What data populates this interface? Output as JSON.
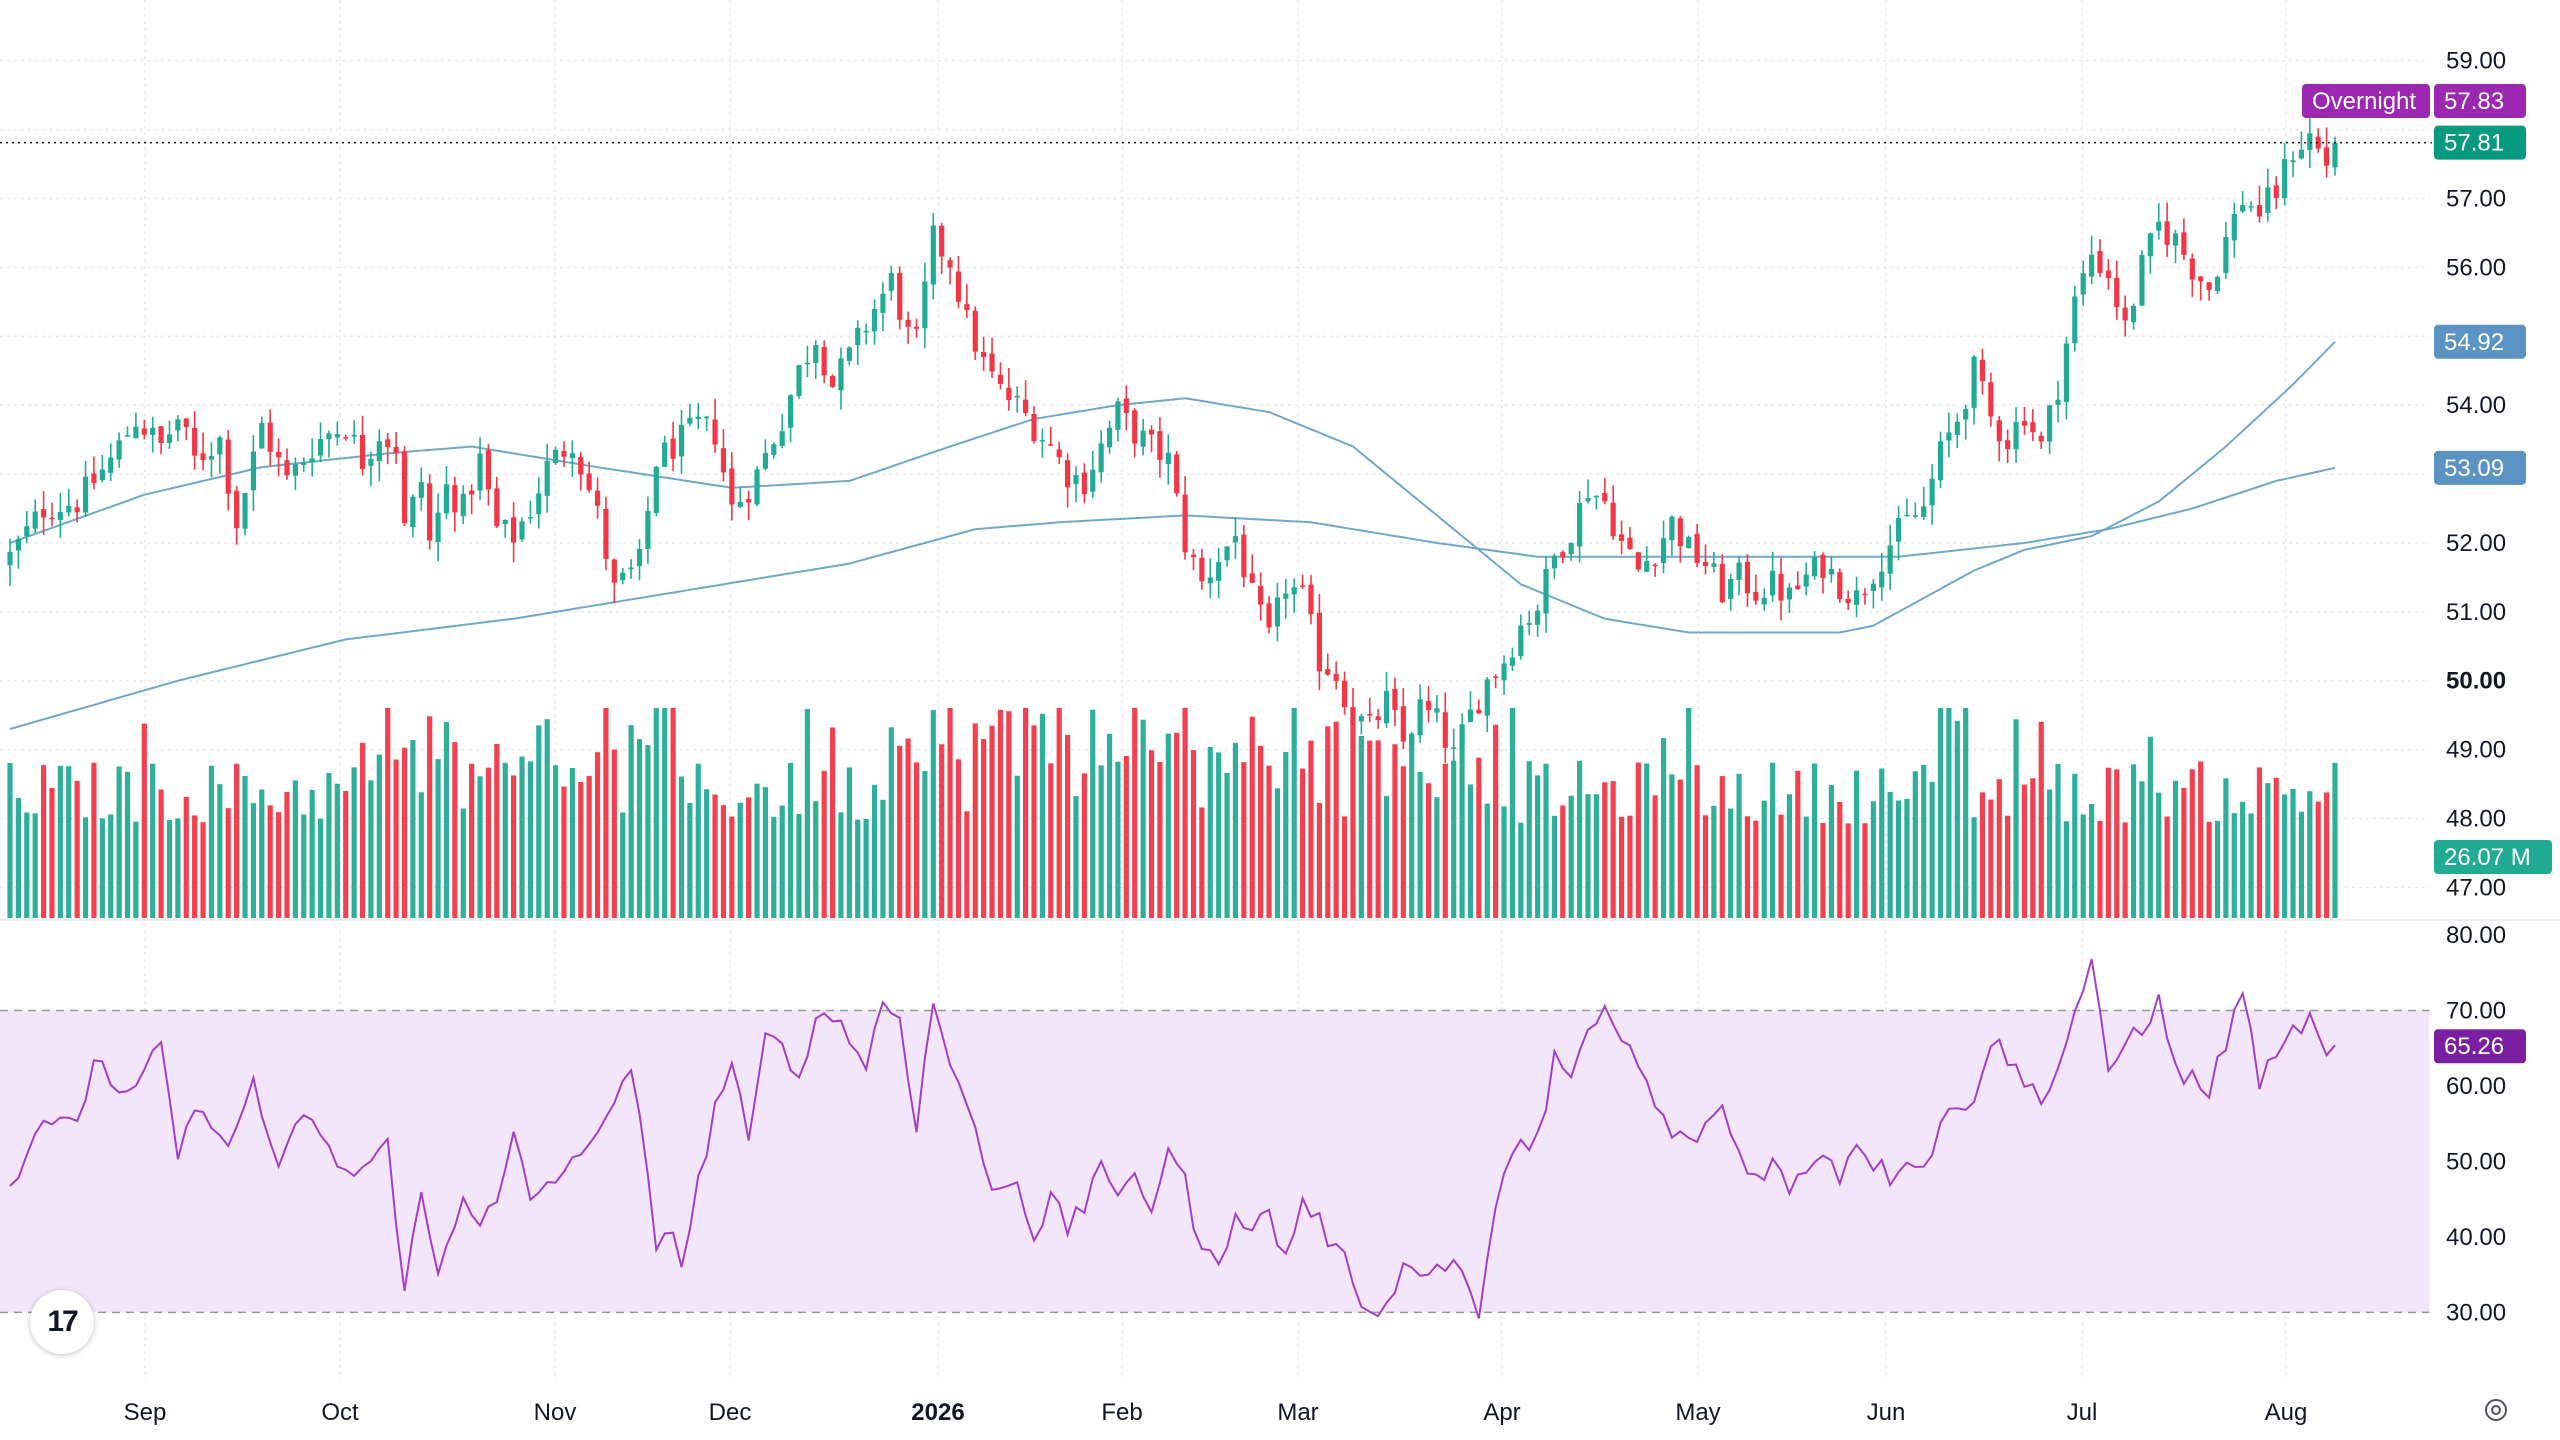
{
  "overnight_label": "Overnight",
  "overnight_price": "57.83",
  "last_price": "57.81",
  "ma_fast_value": "54.92",
  "ma_slow_value": "53.09",
  "volume_value": "26.07 M",
  "rsi_value": "65.26",
  "logo_text": "17",
  "colors": {
    "up": "#22ab94",
    "down": "#f23645",
    "ma_line": "#6fa8c9",
    "rsi_line": "#a33ec7",
    "rsi_band": "#f3e6fb",
    "overnight_tag": "#9c27b0",
    "last_tag": "#089981",
    "ma_tag": "#5b93c2",
    "volume_tag": "#22ab94",
    "rsi_tag": "#7b1fa2"
  },
  "price_axis": [
    "59.00",
    "57.00",
    "56.00",
    "54.00",
    "53.00",
    "52.00",
    "51.00",
    "50.00",
    "49.00",
    "48.00",
    "47.00"
  ],
  "rsi_axis": [
    "80.00",
    "70.00",
    "60.00",
    "50.00",
    "40.00",
    "30.00"
  ],
  "x_axis": [
    "Sep",
    "Oct",
    "Nov",
    "Dec",
    "2026",
    "Feb",
    "Mar",
    "Apr",
    "May",
    "Jun",
    "Jul",
    "Aug"
  ],
  "chart_data": {
    "type": "candlestick",
    "price_axis_range": [
      46.6,
      59.3
    ],
    "rsi_range": [
      27,
      80
    ],
    "rsi_bands": [
      30,
      70
    ],
    "grid": true,
    "price_anchors": [
      [
        0,
        51.8
      ],
      [
        4,
        52.5
      ],
      [
        8,
        52.6
      ],
      [
        12,
        53.2
      ],
      [
        15,
        53.8
      ],
      [
        18,
        53.4
      ],
      [
        20,
        53.8
      ],
      [
        22,
        53.2
      ],
      [
        25,
        53.5
      ],
      [
        27,
        52.3
      ],
      [
        30,
        53.7
      ],
      [
        33,
        52.9
      ],
      [
        36,
        53.4
      ],
      [
        38,
        53.6
      ],
      [
        40,
        53.7
      ],
      [
        42,
        53.2
      ],
      [
        44,
        53.6
      ],
      [
        46,
        53.4
      ],
      [
        47,
        52.2
      ],
      [
        49,
        52.9
      ],
      [
        50,
        52.0
      ],
      [
        52,
        52.8
      ],
      [
        54,
        52.5
      ],
      [
        56,
        53.2
      ],
      [
        58,
        52.2
      ],
      [
        60,
        52.1
      ],
      [
        62,
        52.5
      ],
      [
        64,
        53.1
      ],
      [
        67,
        53.5
      ],
      [
        70,
        52.4
      ],
      [
        72,
        51.3
      ],
      [
        75,
        51.7
      ],
      [
        77,
        53.2
      ],
      [
        80,
        53.5
      ],
      [
        82,
        53.7
      ],
      [
        84,
        53.6
      ],
      [
        86,
        52.5
      ],
      [
        88,
        52.8
      ],
      [
        89,
        53.0
      ],
      [
        92,
        53.8
      ],
      [
        94,
        54.5
      ],
      [
        96,
        55.0
      ],
      [
        98,
        54.3
      ],
      [
        100,
        54.7
      ],
      [
        103,
        55.4
      ],
      [
        105,
        55.8
      ],
      [
        107,
        55.0
      ],
      [
        108,
        54.9
      ],
      [
        110,
        56.4
      ],
      [
        112,
        56.1
      ],
      [
        114,
        55.2
      ],
      [
        116,
        54.6
      ],
      [
        118,
        54.2
      ],
      [
        120,
        54.0
      ],
      [
        122,
        53.7
      ],
      [
        124,
        53.4
      ],
      [
        126,
        53.0
      ],
      [
        128,
        52.9
      ],
      [
        130,
        53.4
      ],
      [
        132,
        53.9
      ],
      [
        134,
        53.6
      ],
      [
        136,
        53.4
      ],
      [
        138,
        53.2
      ],
      [
        140,
        52.0
      ],
      [
        142,
        51.4
      ],
      [
        144,
        51.8
      ],
      [
        146,
        52.1
      ],
      [
        148,
        51.2
      ],
      [
        150,
        50.6
      ],
      [
        152,
        51.4
      ],
      [
        154,
        51.2
      ],
      [
        156,
        50.3
      ],
      [
        158,
        50.1
      ],
      [
        160,
        49.5
      ],
      [
        162,
        49.3
      ],
      [
        164,
        49.7
      ],
      [
        166,
        49.1
      ],
      [
        168,
        49.6
      ],
      [
        170,
        49.4
      ],
      [
        172,
        48.9
      ],
      [
        174,
        49.5
      ],
      [
        176,
        50.0
      ],
      [
        178,
        50.3
      ],
      [
        180,
        50.8
      ],
      [
        182,
        51.1
      ],
      [
        184,
        51.8
      ],
      [
        186,
        52.2
      ],
      [
        188,
        52.8
      ],
      [
        190,
        52.6
      ],
      [
        192,
        52.0
      ],
      [
        194,
        51.6
      ],
      [
        196,
        51.9
      ],
      [
        198,
        52.3
      ],
      [
        200,
        51.9
      ],
      [
        202,
        51.7
      ],
      [
        204,
        51.3
      ],
      [
        206,
        51.5
      ],
      [
        208,
        51.3
      ],
      [
        210,
        51.4
      ],
      [
        212,
        51.2
      ],
      [
        214,
        51.5
      ],
      [
        216,
        51.7
      ],
      [
        218,
        51.4
      ],
      [
        220,
        51.2
      ],
      [
        222,
        51.6
      ],
      [
        224,
        52.0
      ],
      [
        226,
        52.3
      ],
      [
        228,
        52.5
      ],
      [
        230,
        53.3
      ],
      [
        232,
        53.8
      ],
      [
        234,
        54.5
      ],
      [
        236,
        53.8
      ],
      [
        238,
        53.5
      ],
      [
        240,
        53.9
      ],
      [
        242,
        53.4
      ],
      [
        244,
        54.3
      ],
      [
        246,
        55.5
      ],
      [
        248,
        56.2
      ],
      [
        250,
        55.9
      ],
      [
        252,
        55.1
      ],
      [
        254,
        56.0
      ],
      [
        256,
        56.6
      ],
      [
        258,
        56.4
      ],
      [
        260,
        56.0
      ],
      [
        262,
        55.7
      ],
      [
        264,
        56.4
      ],
      [
        266,
        57.0
      ],
      [
        268,
        56.8
      ],
      [
        270,
        57.1
      ],
      [
        272,
        57.7
      ],
      [
        274,
        57.9
      ],
      [
        276,
        57.5
      ],
      [
        277,
        57.81
      ]
    ],
    "sma_fast_anchors": [
      [
        0,
        52.0
      ],
      [
        16,
        52.7
      ],
      [
        30,
        53.1
      ],
      [
        45,
        53.3
      ],
      [
        55,
        53.4
      ],
      [
        70,
        53.1
      ],
      [
        86,
        52.8
      ],
      [
        100,
        52.9
      ],
      [
        112,
        53.4
      ],
      [
        122,
        53.8
      ],
      [
        132,
        54.0
      ],
      [
        140,
        54.1
      ],
      [
        150,
        53.9
      ],
      [
        160,
        53.4
      ],
      [
        170,
        52.4
      ],
      [
        180,
        51.4
      ],
      [
        190,
        50.9
      ],
      [
        200,
        50.7
      ],
      [
        210,
        50.7
      ],
      [
        218,
        50.7
      ],
      [
        222,
        50.8
      ],
      [
        228,
        51.2
      ],
      [
        234,
        51.6
      ],
      [
        240,
        51.9
      ],
      [
        248,
        52.1
      ],
      [
        256,
        52.6
      ],
      [
        264,
        53.4
      ],
      [
        272,
        54.3
      ],
      [
        277,
        54.92
      ]
    ],
    "sma_slow_anchors": [
      [
        0,
        49.3
      ],
      [
        20,
        50.0
      ],
      [
        40,
        50.6
      ],
      [
        60,
        50.9
      ],
      [
        80,
        51.3
      ],
      [
        100,
        51.7
      ],
      [
        115,
        52.2
      ],
      [
        125,
        52.3
      ],
      [
        140,
        52.4
      ],
      [
        155,
        52.3
      ],
      [
        170,
        52.0
      ],
      [
        182,
        51.8
      ],
      [
        195,
        51.8
      ],
      [
        210,
        51.8
      ],
      [
        225,
        51.8
      ],
      [
        240,
        52.0
      ],
      [
        250,
        52.2
      ],
      [
        260,
        52.5
      ],
      [
        270,
        52.9
      ],
      [
        277,
        53.09
      ]
    ],
    "rsi_anchors": [
      [
        0,
        47
      ],
      [
        4,
        56
      ],
      [
        8,
        54
      ],
      [
        10,
        64
      ],
      [
        14,
        58
      ],
      [
        18,
        65
      ],
      [
        20,
        51
      ],
      [
        23,
        58
      ],
      [
        26,
        51
      ],
      [
        29,
        61
      ],
      [
        32,
        48
      ],
      [
        35,
        57
      ],
      [
        38,
        51
      ],
      [
        41,
        48
      ],
      [
        45,
        52
      ],
      [
        47,
        34
      ],
      [
        49,
        45
      ],
      [
        51,
        35
      ],
      [
        54,
        46
      ],
      [
        56,
        42
      ],
      [
        58,
        44
      ],
      [
        60,
        53
      ],
      [
        62,
        45
      ],
      [
        65,
        48
      ],
      [
        68,
        50
      ],
      [
        70,
        55
      ],
      [
        72,
        58
      ],
      [
        74,
        61
      ],
      [
        75,
        57
      ],
      [
        77,
        37
      ],
      [
        79,
        42
      ],
      [
        80,
        36
      ],
      [
        82,
        47
      ],
      [
        84,
        57
      ],
      [
        86,
        63
      ],
      [
        88,
        52
      ],
      [
        90,
        66
      ],
      [
        92,
        67
      ],
      [
        94,
        60
      ],
      [
        96,
        69
      ],
      [
        98,
        70
      ],
      [
        100,
        66
      ],
      [
        102,
        63
      ],
      [
        104,
        71
      ],
      [
        106,
        69
      ],
      [
        108,
        55
      ],
      [
        110,
        71
      ],
      [
        112,
        63
      ],
      [
        114,
        58
      ],
      [
        116,
        49
      ],
      [
        118,
        46
      ],
      [
        120,
        48
      ],
      [
        122,
        40
      ],
      [
        124,
        45
      ],
      [
        126,
        41
      ],
      [
        128,
        44
      ],
      [
        130,
        51
      ],
      [
        132,
        44
      ],
      [
        134,
        48
      ],
      [
        136,
        44
      ],
      [
        138,
        52
      ],
      [
        140,
        47
      ],
      [
        142,
        38
      ],
      [
        144,
        36
      ],
      [
        146,
        44
      ],
      [
        148,
        41
      ],
      [
        150,
        43
      ],
      [
        152,
        37
      ],
      [
        154,
        45
      ],
      [
        156,
        42
      ],
      [
        158,
        38
      ],
      [
        160,
        35
      ],
      [
        162,
        29
      ],
      [
        164,
        32
      ],
      [
        166,
        36
      ],
      [
        168,
        35
      ],
      [
        170,
        36
      ],
      [
        172,
        37
      ],
      [
        174,
        33
      ],
      [
        175,
        28
      ],
      [
        177,
        45
      ],
      [
        179,
        50
      ],
      [
        181,
        53
      ],
      [
        183,
        57
      ],
      [
        184,
        64
      ],
      [
        186,
        60
      ],
      [
        188,
        67
      ],
      [
        190,
        70
      ],
      [
        192,
        66
      ],
      [
        194,
        63
      ],
      [
        196,
        57
      ],
      [
        198,
        54
      ],
      [
        200,
        52
      ],
      [
        202,
        55
      ],
      [
        204,
        57
      ],
      [
        206,
        51
      ],
      [
        208,
        48
      ],
      [
        210,
        50
      ],
      [
        212,
        46
      ],
      [
        214,
        49
      ],
      [
        216,
        52
      ],
      [
        218,
        48
      ],
      [
        220,
        53
      ],
      [
        222,
        50
      ],
      [
        224,
        48
      ],
      [
        226,
        51
      ],
      [
        228,
        49
      ],
      [
        230,
        55
      ],
      [
        232,
        57
      ],
      [
        234,
        59
      ],
      [
        236,
        66
      ],
      [
        238,
        64
      ],
      [
        240,
        60
      ],
      [
        242,
        59
      ],
      [
        244,
        62
      ],
      [
        246,
        70
      ],
      [
        248,
        76
      ],
      [
        250,
        61
      ],
      [
        252,
        66
      ],
      [
        254,
        68
      ],
      [
        256,
        71
      ],
      [
        258,
        62
      ],
      [
        260,
        61
      ],
      [
        262,
        59
      ],
      [
        264,
        66
      ],
      [
        266,
        72
      ],
      [
        268,
        61
      ],
      [
        270,
        63
      ],
      [
        272,
        67
      ],
      [
        274,
        69
      ],
      [
        276,
        63
      ],
      [
        277,
        65.26
      ]
    ],
    "volume_range_m": [
      0,
      60
    ],
    "last_volume_m": 26.07
  }
}
